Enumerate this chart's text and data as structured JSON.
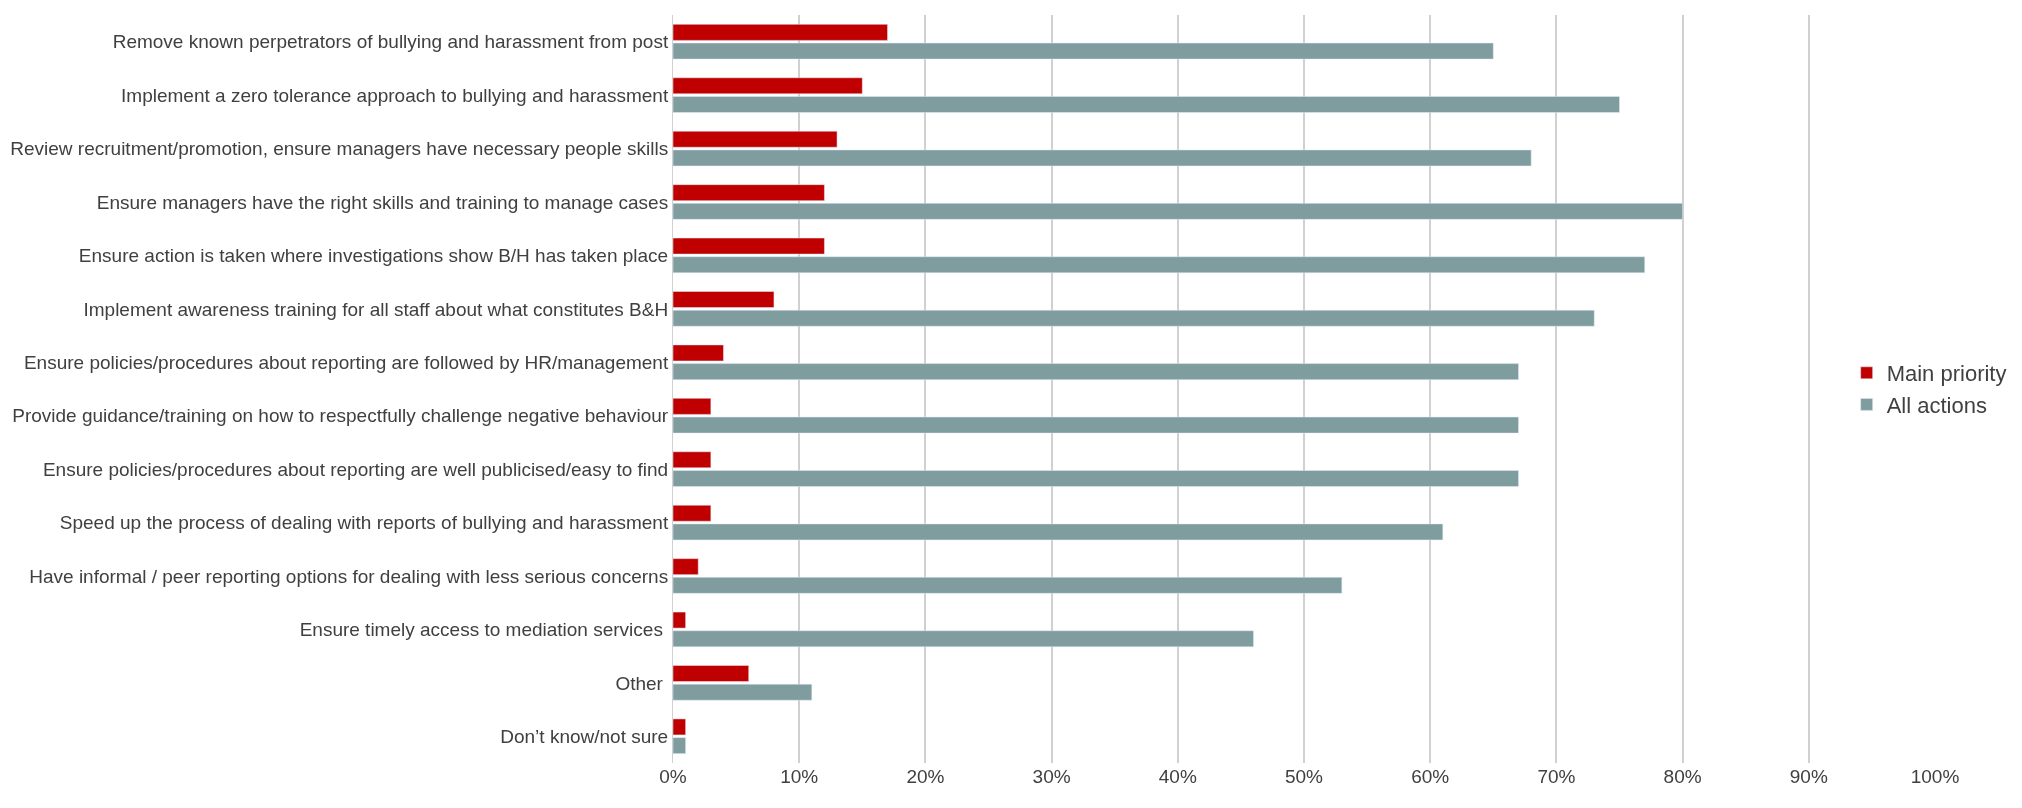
{
  "chart_data": {
    "type": "bar",
    "orientation": "horizontal",
    "categories": [
      "Remove known perpetrators of bullying and harassment from post",
      "Implement a zero tolerance approach to bullying and harassment",
      "Review recruitment/promotion, ensure managers have necessary people skills",
      "Ensure managers have the right skills and training to manage cases",
      "Ensure action is taken where investigations show B/H has taken place",
      "Implement awareness training for all staff about what constitutes B&H",
      "Ensure policies/procedures about reporting are followed by HR/management",
      "Provide guidance/training on how to respectfully challenge negative behaviour",
      "Ensure policies/procedures about reporting are well publicised/easy to find",
      "Speed up the process of dealing with reports of bullying and harassment",
      "Have informal / peer reporting options for dealing with less serious concerns",
      "Ensure timely access to mediation services ",
      "Other ",
      "Don’t know/not sure"
    ],
    "series": [
      {
        "name": "Main priority",
        "color": "#c00000",
        "values": [
          17,
          15,
          13,
          12,
          12,
          8,
          4,
          3,
          3,
          3,
          2,
          1,
          6,
          1
        ]
      },
      {
        "name": "All actions",
        "color": "#7f9c9f",
        "values": [
          65,
          75,
          68,
          80,
          77,
          73,
          67,
          67,
          67,
          61,
          53,
          46,
          11,
          1
        ]
      }
    ],
    "xlim": [
      0,
      100
    ],
    "xticks": [
      {
        "value": 0,
        "label": "0%"
      },
      {
        "value": 10,
        "label": "10%"
      },
      {
        "value": 20,
        "label": "20%"
      },
      {
        "value": 30,
        "label": "30%"
      },
      {
        "value": 40,
        "label": "40%"
      },
      {
        "value": 50,
        "label": "50%"
      },
      {
        "value": 60,
        "label": "60%"
      },
      {
        "value": 70,
        "label": "70%"
      },
      {
        "value": 80,
        "label": "80%"
      },
      {
        "value": 90,
        "label": "90%"
      },
      {
        "value": 100,
        "label": "100%"
      }
    ],
    "grid": "x",
    "legend": "right"
  }
}
